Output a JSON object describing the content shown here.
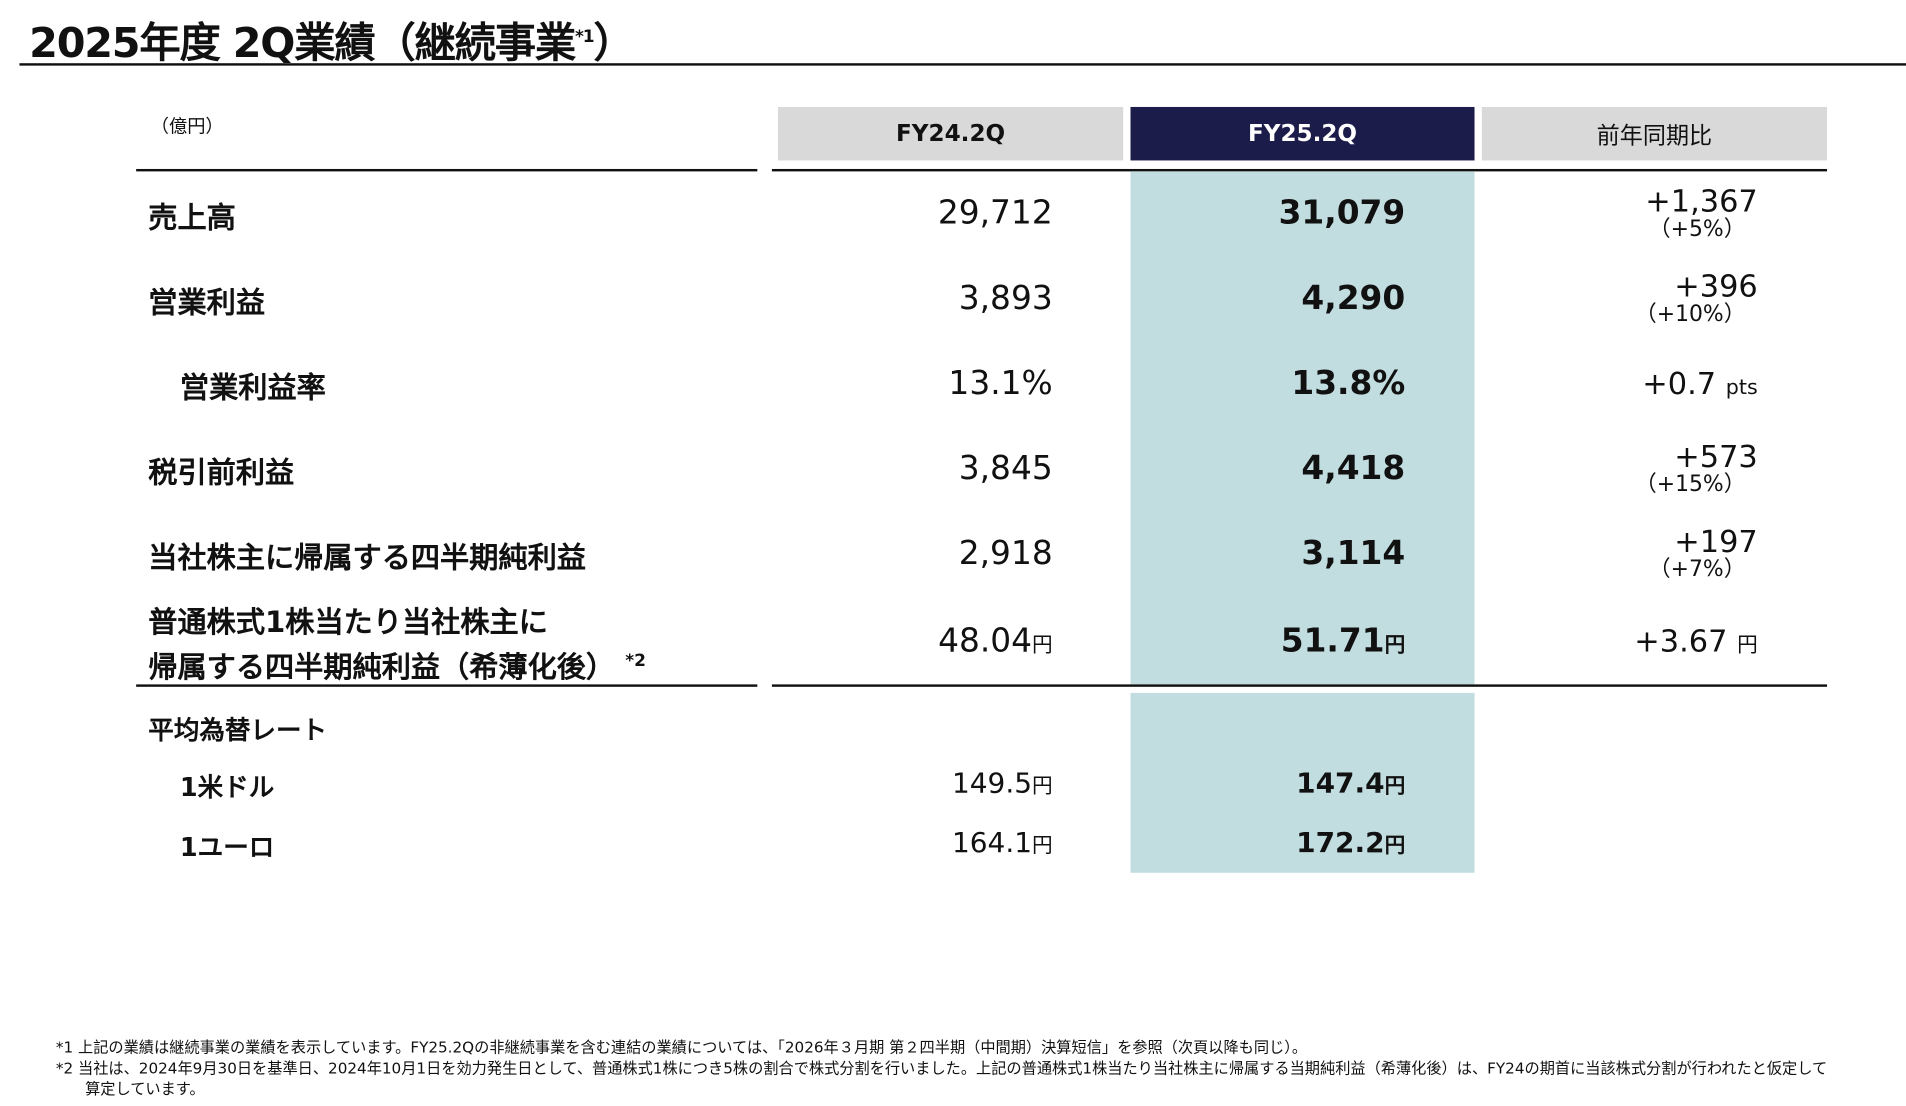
{
  "title": {
    "text": "2025年度 2Q業績（継続事業",
    "note": "*1",
    "close": "）"
  },
  "unit_label": "（億円）",
  "columns": [
    "FY24.2Q",
    "FY25.2Q",
    "前年同期比"
  ],
  "rows": [
    {
      "label": "売上高",
      "fy24": "29,712",
      "fy25": "31,079",
      "diff": "+1,367",
      "pct": "（+5%）"
    },
    {
      "label": "営業利益",
      "fy24": "3,893",
      "fy25": "4,290",
      "diff": "+396",
      "pct": "（+10%）"
    },
    {
      "label": "営業利益率",
      "fy24": "13.1%",
      "fy25": "13.8%",
      "diff": "+0.7",
      "diff_unit": "pts"
    },
    {
      "label": "税引前利益",
      "fy24": "3,845",
      "fy25": "4,418",
      "diff": "+573",
      "pct": "（+15%）"
    },
    {
      "label": "当社株主に帰属する四半期純利益",
      "fy24": "2,918",
      "fy25": "3,114",
      "diff": "+197",
      "pct": "（+7%）"
    },
    {
      "label": "普通株式1株当たり当社株主に",
      "label2": "帰属する四半期純利益（希薄化後）",
      "note": "*2",
      "fy24": "48.04",
      "fy25": "51.71",
      "diff": "+3.67",
      "unit": "円"
    }
  ],
  "fx": {
    "title": "平均為替レート",
    "items": [
      {
        "label": "1米ドル",
        "fy24": "149.5",
        "fy25": "147.4",
        "unit": "円"
      },
      {
        "label": "1ユーロ",
        "fy24": "164.1",
        "fy25": "172.2",
        "unit": "円"
      }
    ]
  },
  "footnotes": [
    "*1  上記の業績は継続事業の業績を表示しています。FY25.2Qの非継続事業を含む連結の業績については、「2026年３月期  第２四半期（中間期）決算短信」を参照（次頁以降も同じ）。",
    "*2  当社は、2024年9月30日を基準日、2024年10月1日を効力発生日として、普通株式1株につき5株の割合で株式分割を行いました。上記の普通株式1株当たり当社株主に帰属する当期純利益（希薄化後）は、FY24の期首に当該株式分割が行われたと仮定して",
    "算定しています。"
  ],
  "colors": {
    "header_gray": "#d9d9d9",
    "header_navy": "#1c1c4a",
    "highlight": "#c2dde0"
  }
}
